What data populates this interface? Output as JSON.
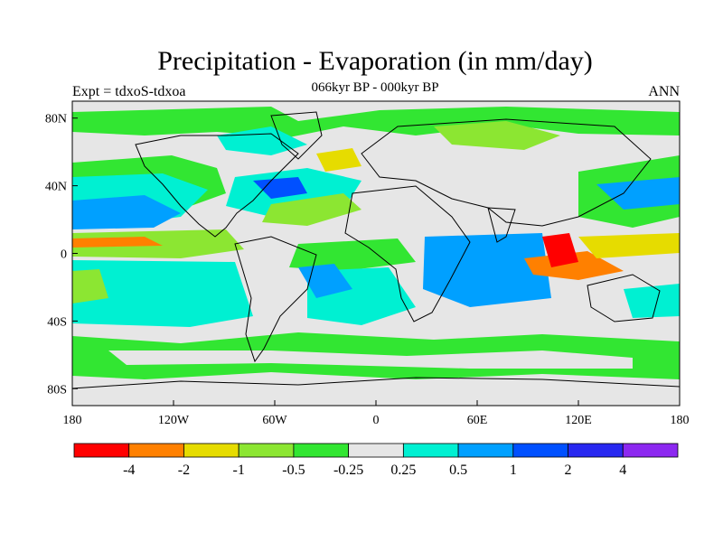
{
  "header": {
    "title": "Precipitation - Evaporation (in mm/day)",
    "subtitle": "066kyr BP - 000kyr BP",
    "left_label": "Expt = tdxoS-tdxoa",
    "right_label": "ANN"
  },
  "map": {
    "lon_range": [
      -180,
      180
    ],
    "lat_range": [
      -90,
      90
    ],
    "x_ticks": [
      {
        "lon": -180,
        "label": "180"
      },
      {
        "lon": -120,
        "label": "120W"
      },
      {
        "lon": -60,
        "label": "60W"
      },
      {
        "lon": 0,
        "label": "0"
      },
      {
        "lon": 60,
        "label": "60E"
      },
      {
        "lon": 120,
        "label": "120E"
      },
      {
        "lon": 180,
        "label": "180"
      }
    ],
    "y_ticks": [
      {
        "lat": 80,
        "label": "80N"
      },
      {
        "lat": 40,
        "label": "40N"
      },
      {
        "lat": 0,
        "label": "0"
      },
      {
        "lat": -40,
        "label": "40S"
      },
      {
        "lat": -80,
        "label": "80S"
      }
    ],
    "background_color": "#e6e6e6"
  },
  "colorbar": {
    "colors": [
      "#ff0000",
      "#ff8000",
      "#e6dc00",
      "#8ce632",
      "#32e632",
      "#e6e6e6",
      "#00f0d2",
      "#00a0ff",
      "#0050ff",
      "#2828f0",
      "#8c28f0"
    ],
    "labels": [
      "-4",
      "-2",
      "-1",
      "-0.5",
      "-0.25",
      "0.25",
      "0.5",
      "1",
      "2",
      "4"
    ]
  }
}
